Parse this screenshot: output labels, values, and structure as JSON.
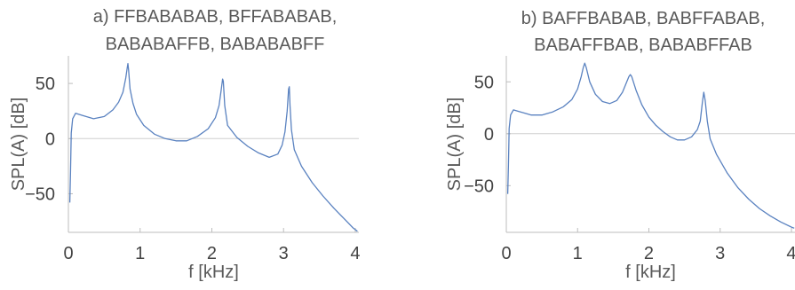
{
  "chart_data": [
    {
      "type": "line",
      "panel": "a",
      "title_lines": [
        "a) FFBABABAB, BFFABABAB,",
        "BABABAFFB, BABABABFF"
      ],
      "xlabel": "f [kHz]",
      "ylabel": "SPL(A) [dB]",
      "xlim": [
        0,
        4.05
      ],
      "ylim": [
        -85,
        75
      ],
      "xticks": [
        0,
        1,
        2,
        3,
        4
      ],
      "xtick_labels": [
        "0",
        "1",
        "2",
        "3",
        "4"
      ],
      "yticks": [
        50,
        0,
        -50
      ],
      "ytick_labels": [
        "50",
        "0",
        "−50"
      ],
      "grid": false,
      "zero_line": true,
      "series": [
        {
          "color": "#5a82c0",
          "points": [
            [
              0.02,
              -58
            ],
            [
              0.03,
              -30
            ],
            [
              0.04,
              5
            ],
            [
              0.06,
              18
            ],
            [
              0.1,
              23
            ],
            [
              0.2,
              21
            ],
            [
              0.35,
              18
            ],
            [
              0.5,
              20
            ],
            [
              0.62,
              26
            ],
            [
              0.7,
              33
            ],
            [
              0.76,
              42
            ],
            [
              0.8,
              55
            ],
            [
              0.82,
              64
            ],
            [
              0.83,
              68
            ],
            [
              0.84,
              62
            ],
            [
              0.86,
              45
            ],
            [
              0.9,
              32
            ],
            [
              0.95,
              22
            ],
            [
              1.05,
              12
            ],
            [
              1.2,
              4
            ],
            [
              1.35,
              0
            ],
            [
              1.5,
              -2
            ],
            [
              1.65,
              -2
            ],
            [
              1.8,
              2
            ],
            [
              1.95,
              9
            ],
            [
              2.05,
              19
            ],
            [
              2.1,
              30
            ],
            [
              2.13,
              44
            ],
            [
              2.15,
              54
            ],
            [
              2.16,
              52
            ],
            [
              2.18,
              30
            ],
            [
              2.22,
              12
            ],
            [
              2.35,
              1
            ],
            [
              2.5,
              -7
            ],
            [
              2.65,
              -13
            ],
            [
              2.8,
              -17
            ],
            [
              2.92,
              -14
            ],
            [
              2.98,
              -6
            ],
            [
              3.02,
              6
            ],
            [
              3.05,
              25
            ],
            [
              3.07,
              45
            ],
            [
              3.08,
              47
            ],
            [
              3.09,
              30
            ],
            [
              3.11,
              8
            ],
            [
              3.15,
              -10
            ],
            [
              3.25,
              -25
            ],
            [
              3.4,
              -40
            ],
            [
              3.55,
              -52
            ],
            [
              3.7,
              -63
            ],
            [
              3.85,
              -73
            ],
            [
              3.97,
              -81
            ],
            [
              4.03,
              -84
            ]
          ]
        }
      ]
    },
    {
      "type": "line",
      "panel": "b",
      "title_lines": [
        "b) BAFFBABAB, BABFFABAB,",
        "BABAFFBAB, BABABFFAB"
      ],
      "xlabel": "f [kHz]",
      "ylabel": "SPL(A) [dB]",
      "xlim": [
        0,
        4.05
      ],
      "ylim": [
        -95,
        75
      ],
      "xticks": [
        0,
        1,
        2,
        3,
        4
      ],
      "xtick_labels": [
        "0",
        "1",
        "2",
        "3",
        "4"
      ],
      "yticks": [
        50,
        0,
        -50
      ],
      "ytick_labels": [
        "50",
        "0",
        "−50"
      ],
      "grid": false,
      "zero_line": true,
      "series": [
        {
          "color": "#5a82c0",
          "points": [
            [
              0.02,
              -58
            ],
            [
              0.03,
              -30
            ],
            [
              0.04,
              5
            ],
            [
              0.06,
              18
            ],
            [
              0.1,
              23
            ],
            [
              0.2,
              21
            ],
            [
              0.35,
              18
            ],
            [
              0.5,
              18
            ],
            [
              0.65,
              21
            ],
            [
              0.8,
              26
            ],
            [
              0.92,
              33
            ],
            [
              1.0,
              43
            ],
            [
              1.05,
              55
            ],
            [
              1.08,
              64
            ],
            [
              1.1,
              68
            ],
            [
              1.12,
              64
            ],
            [
              1.17,
              50
            ],
            [
              1.25,
              38
            ],
            [
              1.35,
              31
            ],
            [
              1.45,
              29
            ],
            [
              1.55,
              32
            ],
            [
              1.63,
              40
            ],
            [
              1.69,
              50
            ],
            [
              1.72,
              55
            ],
            [
              1.74,
              57
            ],
            [
              1.76,
              55
            ],
            [
              1.82,
              42
            ],
            [
              1.9,
              28
            ],
            [
              2.0,
              16
            ],
            [
              2.1,
              8
            ],
            [
              2.2,
              2
            ],
            [
              2.3,
              -3
            ],
            [
              2.4,
              -6
            ],
            [
              2.5,
              -6
            ],
            [
              2.6,
              -3
            ],
            [
              2.68,
              4
            ],
            [
              2.72,
              12
            ],
            [
              2.75,
              30
            ],
            [
              2.77,
              40
            ],
            [
              2.79,
              32
            ],
            [
              2.82,
              12
            ],
            [
              2.86,
              -5
            ],
            [
              2.95,
              -20
            ],
            [
              3.1,
              -38
            ],
            [
              3.25,
              -52
            ],
            [
              3.4,
              -63
            ],
            [
              3.55,
              -72
            ],
            [
              3.7,
              -79
            ],
            [
              3.85,
              -85
            ],
            [
              4.0,
              -90
            ],
            [
              4.04,
              -91
            ]
          ]
        }
      ]
    }
  ]
}
